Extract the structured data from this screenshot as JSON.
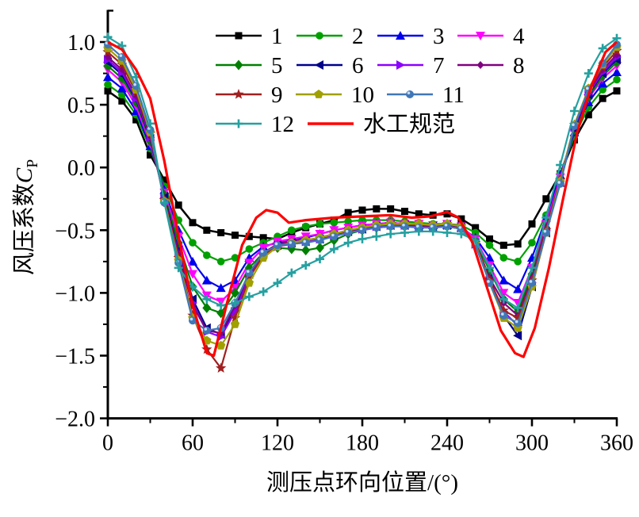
{
  "figure": {
    "ylabel_prefix": "风压系数",
    "ylabel_symbol": "C",
    "ylabel_subscript": "P",
    "xlabel": "测压点环向位置/(°)"
  },
  "chart_data": {
    "type": "line",
    "title": "",
    "xlabel": "测压点环向位置/(°)",
    "ylabel": "风压系数CP",
    "xlim": [
      0,
      360
    ],
    "ylim": [
      -2.0,
      1.25
    ],
    "x_ticks": [
      0,
      60,
      120,
      180,
      240,
      300,
      360
    ],
    "y_ticks": [
      1.0,
      0.5,
      0.0,
      -0.5,
      -1.0,
      -1.5,
      -2.0
    ],
    "x_minor_ticks": [
      30,
      90,
      150,
      210,
      270,
      330
    ],
    "y_minor_ticks": [
      1.25,
      0.75,
      0.25,
      -0.25,
      -0.75,
      -1.25,
      -1.75
    ],
    "grid": false,
    "legend_position": "top-center",
    "axis_color": "#000000",
    "x": [
      0,
      10,
      20,
      30,
      40,
      50,
      60,
      70,
      80,
      90,
      100,
      110,
      120,
      130,
      140,
      150,
      160,
      170,
      180,
      190,
      200,
      210,
      220,
      230,
      240,
      250,
      260,
      270,
      280,
      290,
      300,
      310,
      320,
      330,
      340,
      350,
      360
    ],
    "series": [
      {
        "name": "1",
        "color": "#000000",
        "marker": "square",
        "y": [
          0.61,
          0.53,
          0.38,
          0.1,
          -0.1,
          -0.3,
          -0.44,
          -0.5,
          -0.52,
          -0.54,
          -0.55,
          -0.56,
          -0.57,
          -0.52,
          -0.48,
          -0.45,
          -0.42,
          -0.36,
          -0.34,
          -0.33,
          -0.33,
          -0.35,
          -0.37,
          -0.38,
          -0.37,
          -0.41,
          -0.48,
          -0.57,
          -0.62,
          -0.61,
          -0.45,
          -0.25,
          -0.05,
          0.22,
          0.42,
          0.55,
          0.61
        ]
      },
      {
        "name": "2",
        "color": "#00A000",
        "marker": "circle",
        "y": [
          0.66,
          0.58,
          0.42,
          0.15,
          -0.15,
          -0.42,
          -0.6,
          -0.7,
          -0.75,
          -0.72,
          -0.65,
          -0.6,
          -0.55,
          -0.5,
          -0.47,
          -0.45,
          -0.44,
          -0.43,
          -0.42,
          -0.42,
          -0.42,
          -0.43,
          -0.44,
          -0.45,
          -0.45,
          -0.46,
          -0.52,
          -0.62,
          -0.72,
          -0.75,
          -0.6,
          -0.38,
          -0.05,
          0.25,
          0.48,
          0.62,
          0.7
        ]
      },
      {
        "name": "3",
        "color": "#0000EE",
        "marker": "triangle-up",
        "y": [
          0.72,
          0.63,
          0.45,
          0.17,
          -0.18,
          -0.5,
          -0.75,
          -0.9,
          -0.96,
          -0.9,
          -0.72,
          -0.63,
          -0.6,
          -0.58,
          -0.56,
          -0.53,
          -0.5,
          -0.48,
          -0.46,
          -0.45,
          -0.44,
          -0.45,
          -0.46,
          -0.46,
          -0.46,
          -0.48,
          -0.56,
          -0.72,
          -0.9,
          -0.97,
          -0.72,
          -0.4,
          -0.06,
          0.28,
          0.52,
          0.67,
          0.76
        ]
      },
      {
        "name": "4",
        "color": "#FF00FF",
        "marker": "triangle-down",
        "y": [
          0.78,
          0.68,
          0.49,
          0.19,
          -0.2,
          -0.55,
          -0.85,
          -1.02,
          -1.07,
          -0.96,
          -0.76,
          -0.64,
          -0.59,
          -0.57,
          -0.55,
          -0.53,
          -0.5,
          -0.48,
          -0.46,
          -0.45,
          -0.44,
          -0.45,
          -0.45,
          -0.46,
          -0.45,
          -0.47,
          -0.57,
          -0.78,
          -1.0,
          -1.08,
          -0.8,
          -0.45,
          -0.08,
          0.3,
          0.55,
          0.71,
          0.81
        ]
      },
      {
        "name": "5",
        "color": "#008000",
        "marker": "diamond",
        "y": [
          0.81,
          0.71,
          0.52,
          0.21,
          -0.22,
          -0.6,
          -0.95,
          -1.12,
          -1.16,
          -1.0,
          -0.8,
          -0.68,
          -0.64,
          -0.65,
          -0.66,
          -0.64,
          -0.58,
          -0.53,
          -0.5,
          -0.48,
          -0.47,
          -0.47,
          -0.47,
          -0.48,
          -0.47,
          -0.49,
          -0.59,
          -0.82,
          -1.05,
          -1.15,
          -0.85,
          -0.48,
          -0.1,
          0.3,
          0.56,
          0.73,
          0.84
        ]
      },
      {
        "name": "6",
        "color": "#00008B",
        "marker": "triangle-left",
        "y": [
          0.84,
          0.74,
          0.54,
          0.23,
          -0.24,
          -0.66,
          -1.05,
          -1.28,
          -1.33,
          -1.12,
          -0.85,
          -0.69,
          -0.62,
          -0.6,
          -0.59,
          -0.57,
          -0.54,
          -0.51,
          -0.49,
          -0.47,
          -0.46,
          -0.46,
          -0.47,
          -0.47,
          -0.46,
          -0.48,
          -0.6,
          -0.88,
          -1.18,
          -1.34,
          -0.95,
          -0.52,
          -0.12,
          0.31,
          0.58,
          0.75,
          0.86
        ]
      },
      {
        "name": "7",
        "color": "#8B00FF",
        "marker": "triangle-right",
        "y": [
          0.86,
          0.76,
          0.55,
          0.24,
          -0.25,
          -0.68,
          -1.08,
          -1.31,
          -1.35,
          -1.15,
          -0.87,
          -0.7,
          -0.63,
          -0.61,
          -0.59,
          -0.57,
          -0.54,
          -0.51,
          -0.49,
          -0.47,
          -0.46,
          -0.46,
          -0.47,
          -0.47,
          -0.46,
          -0.48,
          -0.61,
          -0.9,
          -1.15,
          -1.26,
          -0.92,
          -0.5,
          -0.11,
          0.32,
          0.59,
          0.76,
          0.88
        ]
      },
      {
        "name": "8",
        "color": "#800080",
        "marker": "small-diamond",
        "y": [
          0.88,
          0.78,
          0.57,
          0.25,
          -0.25,
          -0.69,
          -1.1,
          -1.3,
          -1.32,
          -1.1,
          -0.84,
          -0.68,
          -0.61,
          -0.59,
          -0.58,
          -0.56,
          -0.53,
          -0.51,
          -0.48,
          -0.46,
          -0.45,
          -0.46,
          -0.46,
          -0.47,
          -0.46,
          -0.48,
          -0.6,
          -0.88,
          -1.08,
          -1.18,
          -0.88,
          -0.48,
          -0.1,
          0.33,
          0.6,
          0.78,
          0.9
        ]
      },
      {
        "name": "9",
        "color": "#A02020",
        "marker": "star",
        "y": [
          0.92,
          0.82,
          0.6,
          0.27,
          -0.26,
          -0.72,
          -1.18,
          -1.45,
          -1.6,
          -1.2,
          -0.88,
          -0.7,
          -0.62,
          -0.6,
          -0.58,
          -0.56,
          -0.53,
          -0.5,
          -0.48,
          -0.46,
          -0.45,
          -0.45,
          -0.46,
          -0.46,
          -0.45,
          -0.47,
          -0.6,
          -0.9,
          -1.14,
          -1.2,
          -0.9,
          -0.5,
          -0.1,
          0.34,
          0.62,
          0.8,
          0.93
        ]
      },
      {
        "name": "10",
        "color": "#A0A000",
        "marker": "pentagon",
        "y": [
          0.95,
          0.85,
          0.62,
          0.28,
          -0.27,
          -0.74,
          -1.2,
          -1.38,
          -1.42,
          -1.25,
          -0.92,
          -0.72,
          -0.63,
          -0.6,
          -0.58,
          -0.56,
          -0.53,
          -0.5,
          -0.48,
          -0.46,
          -0.45,
          -0.45,
          -0.45,
          -0.46,
          -0.45,
          -0.47,
          -0.61,
          -0.92,
          -1.2,
          -1.28,
          -0.95,
          -0.52,
          -0.11,
          0.34,
          0.63,
          0.82,
          0.96
        ]
      },
      {
        "name": "11",
        "color": "#4077B7",
        "marker": "ball",
        "y": [
          0.98,
          0.88,
          0.65,
          0.3,
          -0.28,
          -0.76,
          -1.22,
          -1.3,
          -1.28,
          -1.08,
          -0.84,
          -0.68,
          -0.62,
          -0.61,
          -0.6,
          -0.58,
          -0.55,
          -0.52,
          -0.5,
          -0.48,
          -0.47,
          -0.47,
          -0.48,
          -0.48,
          -0.47,
          -0.49,
          -0.62,
          -0.92,
          -1.18,
          -1.24,
          -0.92,
          -0.52,
          -0.13,
          0.33,
          0.62,
          0.83,
          0.98
        ]
      },
      {
        "name": "12",
        "color": "#25A0A0",
        "marker": "plus",
        "y": [
          1.04,
          0.97,
          0.72,
          0.35,
          -0.28,
          -0.8,
          -0.95,
          -1.05,
          -1.1,
          -1.08,
          -1.03,
          -0.99,
          -0.92,
          -0.84,
          -0.78,
          -0.73,
          -0.65,
          -0.6,
          -0.57,
          -0.55,
          -0.53,
          -0.52,
          -0.51,
          -0.51,
          -0.52,
          -0.53,
          -0.58,
          -0.8,
          -1.05,
          -1.12,
          -0.8,
          -0.4,
          0.02,
          0.45,
          0.75,
          0.95,
          1.03
        ]
      }
    ],
    "code_series": {
      "name": "水工规范",
      "color": "#FF0000",
      "marker": "none",
      "x": [
        0,
        10,
        20,
        30,
        40,
        50,
        60,
        70,
        75,
        85,
        95,
        105,
        112,
        120,
        128,
        140,
        160,
        180,
        200,
        215,
        228,
        240,
        248,
        258,
        268,
        278,
        288,
        294,
        302,
        312,
        322,
        332,
        342,
        352,
        360
      ],
      "y": [
        1.0,
        0.94,
        0.78,
        0.55,
        0.05,
        -0.55,
        -1.1,
        -1.48,
        -1.5,
        -1.05,
        -0.62,
        -0.4,
        -0.34,
        -0.36,
        -0.44,
        -0.42,
        -0.4,
        -0.39,
        -0.38,
        -0.4,
        -0.39,
        -0.355,
        -0.4,
        -0.6,
        -0.95,
        -1.3,
        -1.48,
        -1.51,
        -1.28,
        -0.8,
        -0.25,
        0.28,
        0.65,
        0.92,
        1.0
      ]
    }
  }
}
